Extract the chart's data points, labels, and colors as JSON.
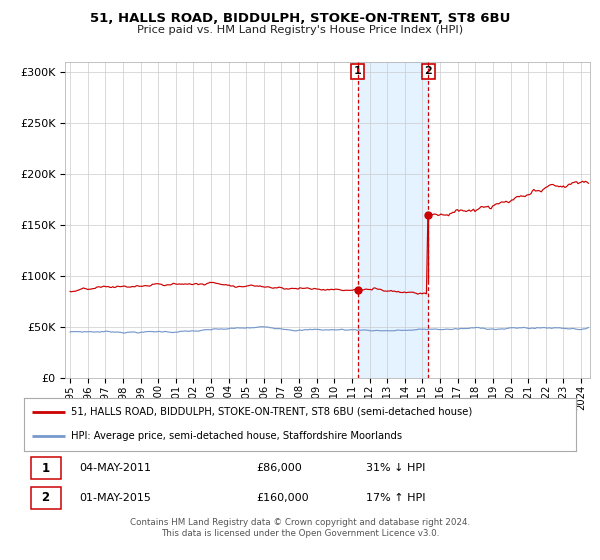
{
  "title": "51, HALLS ROAD, BIDDULPH, STOKE-ON-TRENT, ST8 6BU",
  "subtitle": "Price paid vs. HM Land Registry's House Price Index (HPI)",
  "legend_line1": "51, HALLS ROAD, BIDDULPH, STOKE-ON-TRENT, ST8 6BU (semi-detached house)",
  "legend_line2": "HPI: Average price, semi-detached house, Staffordshire Moorlands",
  "annotation1_date": "04-MAY-2011",
  "annotation1_price": "£86,000",
  "annotation1_hpi": "31% ↓ HPI",
  "annotation2_date": "01-MAY-2015",
  "annotation2_price": "£160,000",
  "annotation2_hpi": "17% ↑ HPI",
  "footer1": "Contains HM Land Registry data © Crown copyright and database right 2024.",
  "footer2": "This data is licensed under the Open Government Licence v3.0.",
  "red_color": "#cc0000",
  "blue_color": "#7799cc",
  "marker1_x": 2011.33,
  "marker1_y": 86000,
  "marker2_x": 2015.33,
  "marker2_y": 160000,
  "vline1_x": 2011.33,
  "vline2_x": 2015.33,
  "shade_x1": 2011.33,
  "shade_x2": 2015.33,
  "ylim_max": 310000,
  "xlim_min": 1994.7,
  "xlim_max": 2024.5,
  "yticks": [
    0,
    50000,
    100000,
    150000,
    200000,
    250000,
    300000
  ],
  "xticks": [
    1995,
    1996,
    1997,
    1998,
    1999,
    2000,
    2001,
    2002,
    2003,
    2004,
    2005,
    2006,
    2007,
    2008,
    2009,
    2010,
    2011,
    2012,
    2013,
    2014,
    2015,
    2016,
    2017,
    2018,
    2019,
    2020,
    2021,
    2022,
    2023,
    2024
  ]
}
